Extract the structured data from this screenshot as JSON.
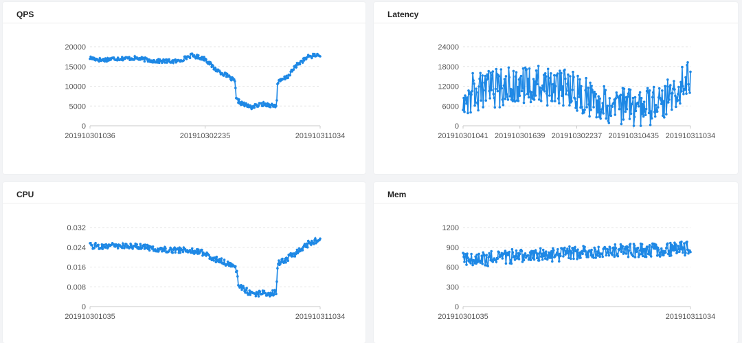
{
  "panels": [
    {
      "title": "QPS"
    },
    {
      "title": "Latency"
    },
    {
      "title": "CPU"
    },
    {
      "title": "Mem"
    }
  ],
  "colors": {
    "series": "#1e88e5",
    "axis": "#c8c8c8",
    "grid": "#e6e6e6"
  },
  "chart_data": [
    {
      "type": "line",
      "title": "QPS",
      "ylim": [
        0,
        20000
      ],
      "yticks": [
        "0",
        "5000",
        "10000",
        "15000",
        "20000"
      ],
      "xticks": [
        "201910301036",
        "201910302235",
        "201910311034"
      ],
      "grid": true,
      "x_range": [
        "201910301036",
        "201910311034"
      ],
      "series_profile": [
        [
          0,
          17200
        ],
        [
          0.05,
          16600
        ],
        [
          0.1,
          17000
        ],
        [
          0.2,
          17100
        ],
        [
          0.28,
          16400
        ],
        [
          0.38,
          16300
        ],
        [
          0.44,
          17800
        ],
        [
          0.5,
          17000
        ],
        [
          0.54,
          14500
        ],
        [
          0.6,
          12500
        ],
        [
          0.63,
          11200
        ],
        [
          0.635,
          6700
        ],
        [
          0.66,
          5600
        ],
        [
          0.7,
          4700
        ],
        [
          0.75,
          5500
        ],
        [
          0.8,
          5100
        ],
        [
          0.81,
          5000
        ],
        [
          0.815,
          10900
        ],
        [
          0.86,
          12500
        ],
        [
          0.9,
          15500
        ],
        [
          0.95,
          17500
        ],
        [
          1,
          18000
        ]
      ],
      "noise": 500
    },
    {
      "type": "line",
      "title": "Latency",
      "ylim": [
        0,
        24000
      ],
      "yticks": [
        "0",
        "6000",
        "12000",
        "18000",
        "24000"
      ],
      "xticks": [
        "201910301041",
        "201910301639",
        "201910302237",
        "201910310435",
        "201910311034"
      ],
      "grid": true,
      "x_range": [
        "201910301041",
        "201910311034"
      ],
      "series_profile": [
        [
          0,
          9500
        ],
        [
          0.15,
          11500
        ],
        [
          0.3,
          12500
        ],
        [
          0.45,
          11500
        ],
        [
          0.55,
          8500
        ],
        [
          0.65,
          6500
        ],
        [
          0.72,
          5500
        ],
        [
          0.8,
          5200
        ],
        [
          0.85,
          7000
        ],
        [
          0.93,
          10500
        ],
        [
          0.97,
          14000
        ],
        [
          1,
          13000
        ]
      ],
      "noise": 6000
    },
    {
      "type": "line",
      "title": "CPU",
      "ylim": [
        0,
        0.032
      ],
      "yticks": [
        "0",
        "0.008",
        "0.016",
        "0.024",
        "0.032"
      ],
      "xticks": [
        "201910301035",
        "201910311034"
      ],
      "grid": true,
      "x_range": [
        "201910301035",
        "201910311034"
      ],
      "series_profile": [
        [
          0,
          0.0245
        ],
        [
          0.2,
          0.0245
        ],
        [
          0.3,
          0.0232
        ],
        [
          0.47,
          0.0225
        ],
        [
          0.55,
          0.019
        ],
        [
          0.6,
          0.0175
        ],
        [
          0.64,
          0.0148
        ],
        [
          0.645,
          0.0085
        ],
        [
          0.68,
          0.0065
        ],
        [
          0.7,
          0.005
        ],
        [
          0.8,
          0.0055
        ],
        [
          0.81,
          0.0055
        ],
        [
          0.815,
          0.0175
        ],
        [
          0.85,
          0.019
        ],
        [
          0.9,
          0.022
        ],
        [
          0.95,
          0.0255
        ],
        [
          1,
          0.0275
        ]
      ],
      "noise": 0.0012
    },
    {
      "type": "line",
      "title": "Mem",
      "ylim": [
        0,
        1200
      ],
      "yticks": [
        "0",
        "300",
        "600",
        "900",
        "1200"
      ],
      "xticks": [
        "201910301035",
        "201910311034"
      ],
      "grid": true,
      "x_range": [
        "201910301035",
        "201910311034"
      ],
      "series_profile": [
        [
          0,
          740
        ],
        [
          0.05,
          690
        ],
        [
          0.1,
          720
        ],
        [
          0.2,
          760
        ],
        [
          0.4,
          790
        ],
        [
          0.5,
          815
        ],
        [
          0.6,
          830
        ],
        [
          0.7,
          840
        ],
        [
          0.8,
          850
        ],
        [
          0.9,
          860
        ],
        [
          1,
          890
        ]
      ],
      "noise": 110
    }
  ]
}
